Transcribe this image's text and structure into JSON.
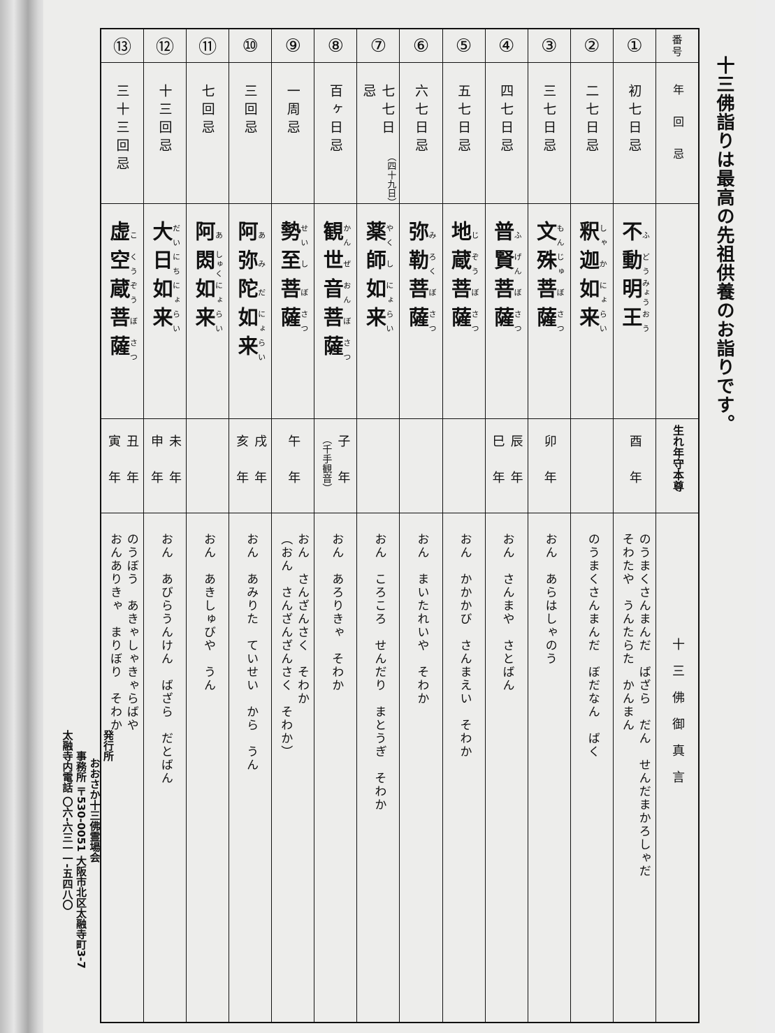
{
  "title": "十三佛詣りは最高の先祖供養のお詣りです。",
  "header": {
    "number": "番号",
    "nenkaiki": "年回忌",
    "honzon": "",
    "birth_year": "生れ年守本尊",
    "mantra": "十三佛御真言"
  },
  "rows": [
    {
      "no": "①",
      "nenkaiki": "初七日忌",
      "nenkaiki_note": "",
      "honzon": [
        [
          "不",
          "ふ"
        ],
        [
          "動",
          "どう"
        ],
        [
          "明",
          "みょう"
        ],
        [
          "王",
          "おう"
        ]
      ],
      "birth_year": [
        "酉年"
      ],
      "birth_note": "",
      "mantra": [
        "のうまくさんまんだ　ばざら　だん　せんだまかろしゃだ",
        "そわたや　うんたらた　かんまん"
      ]
    },
    {
      "no": "②",
      "nenkaiki": "二七日忌",
      "nenkaiki_note": "",
      "honzon": [
        [
          "釈",
          "しゃ"
        ],
        [
          "迦",
          "か"
        ],
        [
          "如",
          "にょ"
        ],
        [
          "来",
          "らい"
        ]
      ],
      "birth_year": [],
      "birth_note": "",
      "mantra": [
        "のうまくさんまんだ　ぼだなん　ばく"
      ]
    },
    {
      "no": "③",
      "nenkaiki": "三七日忌",
      "nenkaiki_note": "",
      "honzon": [
        [
          "文",
          "もん"
        ],
        [
          "殊",
          "じゅ"
        ],
        [
          "菩",
          "ぼ"
        ],
        [
          "薩",
          "さつ"
        ]
      ],
      "birth_year": [
        "卯年"
      ],
      "birth_note": "",
      "mantra": [
        "おん　あらはしゃのう"
      ]
    },
    {
      "no": "④",
      "nenkaiki": "四七日忌",
      "nenkaiki_note": "",
      "honzon": [
        [
          "普",
          "ふ"
        ],
        [
          "賢",
          "げん"
        ],
        [
          "菩",
          "ぼ"
        ],
        [
          "薩",
          "さつ"
        ]
      ],
      "birth_year": [
        "辰年",
        "巳年"
      ],
      "birth_note": "",
      "mantra": [
        "おん　さんまや　さとばん"
      ]
    },
    {
      "no": "⑤",
      "nenkaiki": "五七日忌",
      "nenkaiki_note": "",
      "honzon": [
        [
          "地",
          "じ"
        ],
        [
          "蔵",
          "ぞう"
        ],
        [
          "菩",
          "ぼ"
        ],
        [
          "薩",
          "さつ"
        ]
      ],
      "birth_year": [],
      "birth_note": "",
      "mantra": [
        "おん　かかかび　さんまえい　そわか"
      ]
    },
    {
      "no": "⑥",
      "nenkaiki": "六七日忌",
      "nenkaiki_note": "",
      "honzon": [
        [
          "弥",
          "み"
        ],
        [
          "勒",
          "ろく"
        ],
        [
          "菩",
          "ぼ"
        ],
        [
          "薩",
          "さつ"
        ]
      ],
      "birth_year": [],
      "birth_note": "",
      "mantra": [
        "おん　まいたれいや　そわか"
      ]
    },
    {
      "no": "⑦",
      "nenkaiki": "七七日忌",
      "nenkaiki_note": "（四十九日）",
      "honzon": [
        [
          "薬",
          "やく"
        ],
        [
          "師",
          "し"
        ],
        [
          "如",
          "にょ"
        ],
        [
          "来",
          "らい"
        ]
      ],
      "birth_year": [],
      "birth_note": "",
      "mantra": [
        "おん　ころころ　せんだり　まとうぎ　そわか"
      ]
    },
    {
      "no": "⑧",
      "nenkaiki": "百ヶ日忌",
      "nenkaiki_note": "",
      "honzon": [
        [
          "観",
          "かん"
        ],
        [
          "世",
          "ぜ"
        ],
        [
          "音",
          "おん"
        ],
        [
          "菩",
          "ぼ"
        ],
        [
          "薩",
          "さつ"
        ]
      ],
      "birth_year": [
        "子年"
      ],
      "birth_note": "（千手観音）",
      "mantra": [
        "おん　あろりきゃ　そわか"
      ]
    },
    {
      "no": "⑨",
      "nenkaiki": "一周忌",
      "nenkaiki_note": "",
      "honzon": [
        [
          "勢",
          "せい"
        ],
        [
          "至",
          "し"
        ],
        [
          "菩",
          "ぼ"
        ],
        [
          "薩",
          "さつ"
        ]
      ],
      "birth_year": [
        "午年"
      ],
      "birth_note": "",
      "mantra": [
        "おん　さんざんさく　そわか",
        "（おん　さんざんざんさく　そわか）"
      ]
    },
    {
      "no": "⑩",
      "nenkaiki": "三回忌",
      "nenkaiki_note": "",
      "honzon": [
        [
          "阿",
          "あ"
        ],
        [
          "弥",
          "み"
        ],
        [
          "陀",
          "だ"
        ],
        [
          "如",
          "にょ"
        ],
        [
          "来",
          "らい"
        ]
      ],
      "birth_year": [
        "戌年",
        "亥年"
      ],
      "birth_note": "",
      "mantra": [
        "おん　あみりた　ていせい　から　うん"
      ]
    },
    {
      "no": "⑪",
      "nenkaiki": "七回忌",
      "nenkaiki_note": "",
      "honzon": [
        [
          "阿",
          "あ"
        ],
        [
          "閦",
          "しゅく"
        ],
        [
          "如",
          "にょ"
        ],
        [
          "来",
          "らい"
        ]
      ],
      "birth_year": [],
      "birth_note": "",
      "mantra": [
        "おん　あきしゅびや　うん"
      ]
    },
    {
      "no": "⑫",
      "nenkaiki": "十三回忌",
      "nenkaiki_note": "",
      "honzon": [
        [
          "大",
          "だい"
        ],
        [
          "日",
          "にち"
        ],
        [
          "如",
          "にょ"
        ],
        [
          "来",
          "らい"
        ]
      ],
      "birth_year": [
        "未年",
        "申年"
      ],
      "birth_note": "",
      "mantra": [
        "おん　あびらうんけん　ばざら　だとばん"
      ]
    },
    {
      "no": "⑬",
      "nenkaiki": "三十三回忌",
      "nenkaiki_note": "",
      "honzon": [
        [
          "虚",
          "こ"
        ],
        [
          "空",
          "くう"
        ],
        [
          "蔵",
          "ぞう"
        ],
        [
          "菩",
          "ぼ"
        ],
        [
          "薩",
          "さつ"
        ]
      ],
      "birth_year": [
        "丑年",
        "寅年"
      ],
      "birth_note": "",
      "mantra": [
        "のうぼう　あきゃしゃきゃらばや",
        "おんありきゃ　まりぼり　そわか"
      ]
    }
  ],
  "publisher": {
    "label": "発行所",
    "name": "おおさか十三佛霊場会",
    "office": "事務所 〒530-0051 大阪市北区太融寺町3-7",
    "phone": "太融寺内電話 〇六-六三一一-五四八〇"
  }
}
